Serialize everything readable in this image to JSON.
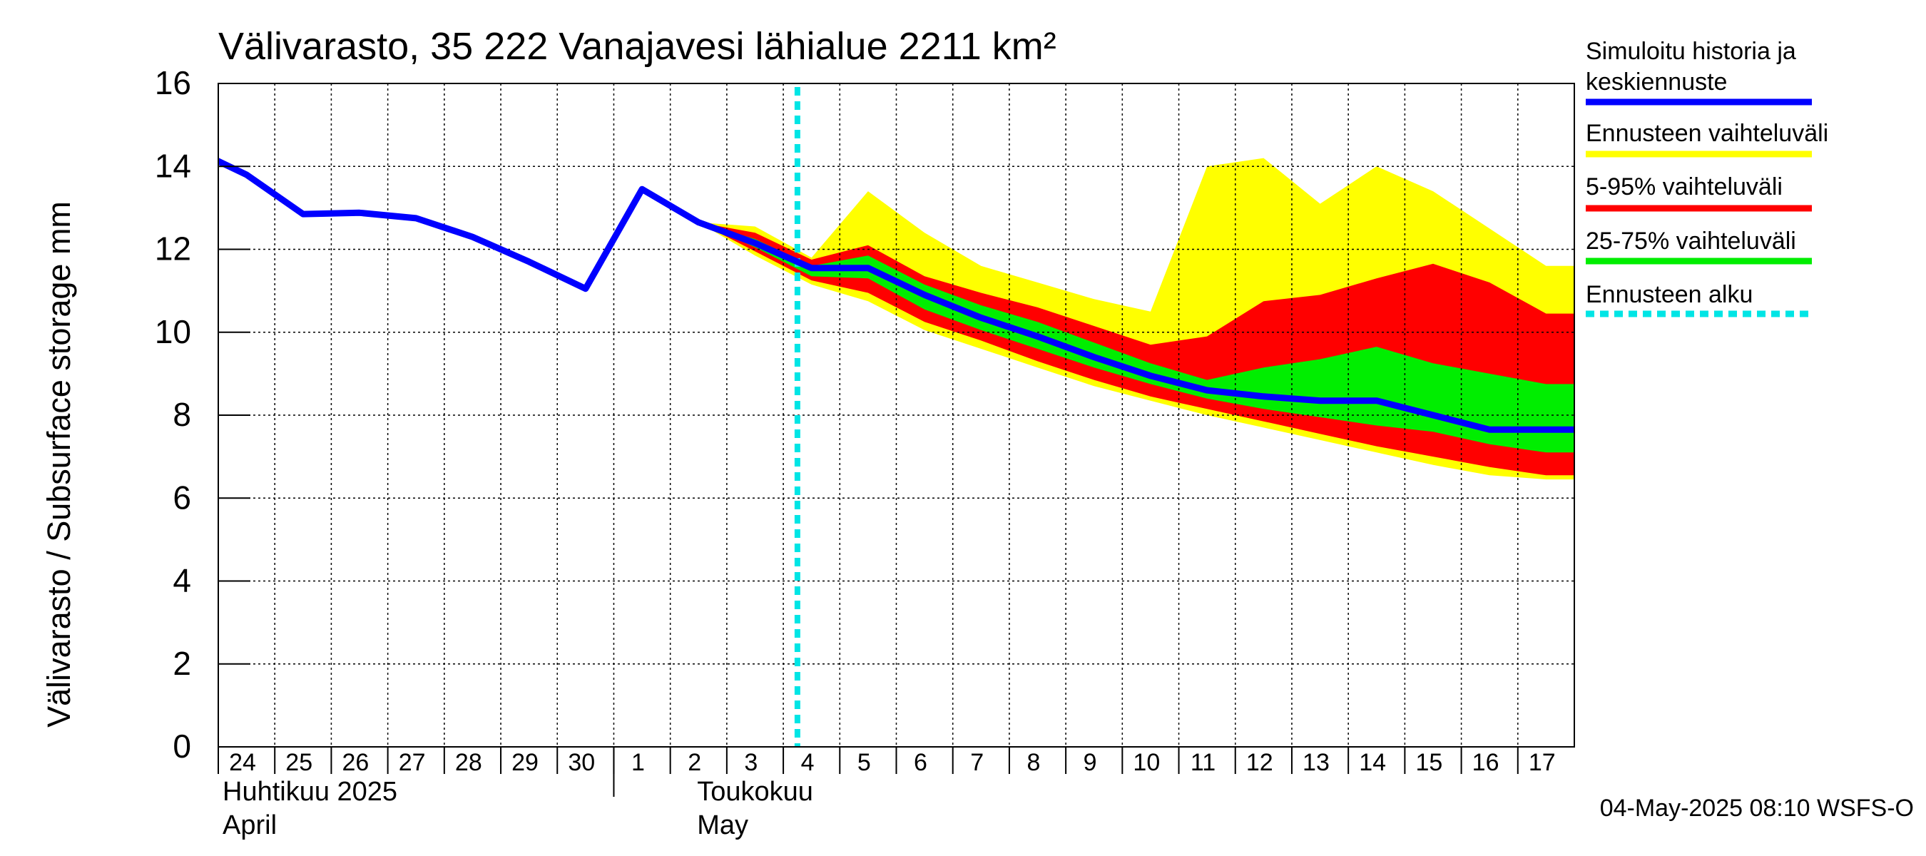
{
  "chart_data": {
    "type": "area",
    "title": "Välivarasto, 35 222 Vanajavesi lähialue 2211 km²",
    "ylabel": "Välivarasto / Subsurface storage  mm",
    "ylim": [
      0,
      16
    ],
    "yticks": [
      "0",
      "2",
      "4",
      "6",
      "8",
      "10",
      "12",
      "14",
      "16"
    ],
    "grid": true,
    "legend_position": "right",
    "x_start": "2025-04-24",
    "x_end": "2025-05-17",
    "day_labels": [
      "24",
      "25",
      "26",
      "27",
      "28",
      "29",
      "30",
      "1",
      "2",
      "3",
      "4",
      "5",
      "6",
      "7",
      "8",
      "9",
      "10",
      "11",
      "12",
      "13",
      "14",
      "15",
      "16",
      "17"
    ],
    "month_labels": [
      {
        "fi": "Huhtikuu  2025",
        "en": "April"
      },
      {
        "fi": "Toukokuu",
        "en": "May"
      }
    ],
    "forecast_start": "2025-05-03 18:00",
    "timestamp": "04-May-2025 08:10 WSFS-O",
    "colors": {
      "median": "#0000ff",
      "full_range": "#ffff00",
      "p5_95": "#ff0000",
      "p25_75": "#00ee00",
      "forecast_start": "#00e5e5",
      "grid": "#000000"
    },
    "series": [
      {
        "name": "Simuloitu historia ja keskiennuste",
        "x": [
          "2025-04-23",
          "2025-04-24",
          "2025-04-25",
          "2025-04-26",
          "2025-04-27",
          "2025-04-28",
          "2025-04-29",
          "2025-04-30",
          "2025-05-01",
          "2025-05-02",
          "2025-05-03",
          "2025-05-04",
          "2025-05-05",
          "2025-05-06",
          "2025-05-07",
          "2025-05-08",
          "2025-05-09",
          "2025-05-10",
          "2025-05-11",
          "2025-05-12",
          "2025-05-13",
          "2025-05-14",
          "2025-05-15",
          "2025-05-16",
          "2025-05-17",
          "2025-05-18"
        ],
        "values": [
          14.45,
          13.8,
          12.85,
          12.88,
          12.75,
          12.3,
          11.7,
          11.05,
          13.45,
          12.65,
          12.15,
          11.55,
          11.55,
          10.9,
          10.35,
          9.9,
          9.4,
          8.95,
          8.6,
          8.45,
          8.35,
          8.35,
          8.0,
          7.65,
          7.65,
          7.65
        ]
      },
      {
        "name": "Ennusteen vaihteluväli",
        "x": [
          "2025-05-02",
          "2025-05-03",
          "2025-05-04",
          "2025-05-05",
          "2025-05-06",
          "2025-05-07",
          "2025-05-08",
          "2025-05-09",
          "2025-05-10",
          "2025-05-11",
          "2025-05-12",
          "2025-05-13",
          "2025-05-14",
          "2025-05-15",
          "2025-05-16",
          "2025-05-17",
          "2025-05-18"
        ],
        "upper": [
          12.65,
          12.55,
          11.8,
          13.4,
          12.4,
          11.6,
          11.2,
          10.8,
          10.5,
          14.0,
          14.2,
          13.1,
          14.0,
          13.4,
          12.5,
          11.6,
          11.6
        ],
        "lower": [
          12.65,
          11.85,
          11.15,
          10.75,
          10.05,
          9.6,
          9.15,
          8.7,
          8.35,
          8.0,
          7.7,
          7.4,
          7.1,
          6.8,
          6.55,
          6.45,
          6.45
        ]
      },
      {
        "name": "5-95% vaihteluväli",
        "x": [
          "2025-05-02",
          "2025-05-03",
          "2025-05-04",
          "2025-05-05",
          "2025-05-06",
          "2025-05-07",
          "2025-05-08",
          "2025-05-09",
          "2025-05-10",
          "2025-05-11",
          "2025-05-12",
          "2025-05-13",
          "2025-05-14",
          "2025-05-15",
          "2025-05-16",
          "2025-05-17",
          "2025-05-18"
        ],
        "upper": [
          12.65,
          12.4,
          11.75,
          12.1,
          11.35,
          10.95,
          10.6,
          10.15,
          9.7,
          9.9,
          10.75,
          10.9,
          11.3,
          11.65,
          11.2,
          10.45,
          10.45
        ],
        "lower": [
          12.65,
          11.95,
          11.25,
          10.95,
          10.25,
          9.8,
          9.3,
          8.85,
          8.45,
          8.15,
          7.85,
          7.55,
          7.25,
          7.0,
          6.75,
          6.55,
          6.55
        ]
      },
      {
        "name": "25-75% vaihteluväli",
        "x": [
          "2025-05-02",
          "2025-05-03",
          "2025-05-04",
          "2025-05-05",
          "2025-05-06",
          "2025-05-07",
          "2025-05-08",
          "2025-05-09",
          "2025-05-10",
          "2025-05-11",
          "2025-05-12",
          "2025-05-13",
          "2025-05-14",
          "2025-05-15",
          "2025-05-16",
          "2025-05-17",
          "2025-05-18"
        ],
        "upper": [
          12.65,
          12.25,
          11.6,
          11.85,
          11.15,
          10.65,
          10.25,
          9.75,
          9.25,
          8.85,
          9.15,
          9.35,
          9.65,
          9.25,
          9.0,
          8.75,
          8.75
        ],
        "lower": [
          12.65,
          12.05,
          11.35,
          11.3,
          10.55,
          10.05,
          9.6,
          9.15,
          8.75,
          8.4,
          8.15,
          7.95,
          7.75,
          7.6,
          7.3,
          7.1,
          7.1
        ]
      },
      {
        "name": "Ennusteen alku",
        "x": [
          "2025-05-03 18:00"
        ]
      }
    ]
  }
}
